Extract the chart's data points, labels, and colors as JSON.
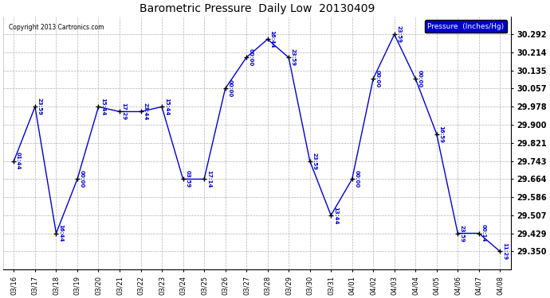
{
  "title": "Barometric Pressure  Daily Low  20130409",
  "copyright": "Copyright 2013 Cartronics.com",
  "legend_label": "Pressure  (Inches/Hg)",
  "x_labels": [
    "03/16",
    "03/17",
    "03/18",
    "03/19",
    "03/20",
    "03/21",
    "03/22",
    "03/23",
    "03/24",
    "03/25",
    "03/26",
    "03/27",
    "03/28",
    "03/29",
    "03/30",
    "03/31",
    "04/01",
    "04/02",
    "04/03",
    "04/04",
    "04/05",
    "04/06",
    "04/07",
    "04/08"
  ],
  "y_values": [
    29.743,
    29.978,
    29.429,
    29.664,
    29.978,
    29.957,
    29.957,
    29.978,
    29.664,
    29.664,
    30.057,
    30.192,
    30.271,
    30.192,
    29.743,
    29.507,
    29.664,
    30.1,
    30.292,
    30.1,
    29.86,
    29.429,
    29.429,
    29.35
  ],
  "time_labels": [
    "01:44",
    "23:59",
    "16:44",
    "00:00",
    "15:44",
    "17:29",
    "23:44",
    "15:44",
    "03:59",
    "17:14",
    "00:00",
    "00:00",
    "16:44",
    "23:59",
    "23:59",
    "13:44",
    "00:00",
    "00:00",
    "23:59",
    "00:00",
    "16:59",
    "23:59",
    "00:14",
    "11:29"
  ],
  "y_ticks": [
    29.35,
    29.429,
    29.507,
    29.586,
    29.664,
    29.743,
    29.821,
    29.9,
    29.978,
    30.057,
    30.135,
    30.214,
    30.292
  ],
  "y_min": 29.272,
  "y_max": 30.37,
  "line_color": "#0000cc",
  "marker_color": "#000000",
  "bg_color": "#ffffff",
  "grid_color": "#aaaaaa",
  "title_color": "#000000",
  "label_color": "#0000cc",
  "legend_bg": "#0000cc",
  "legend_fg": "#ffffff"
}
